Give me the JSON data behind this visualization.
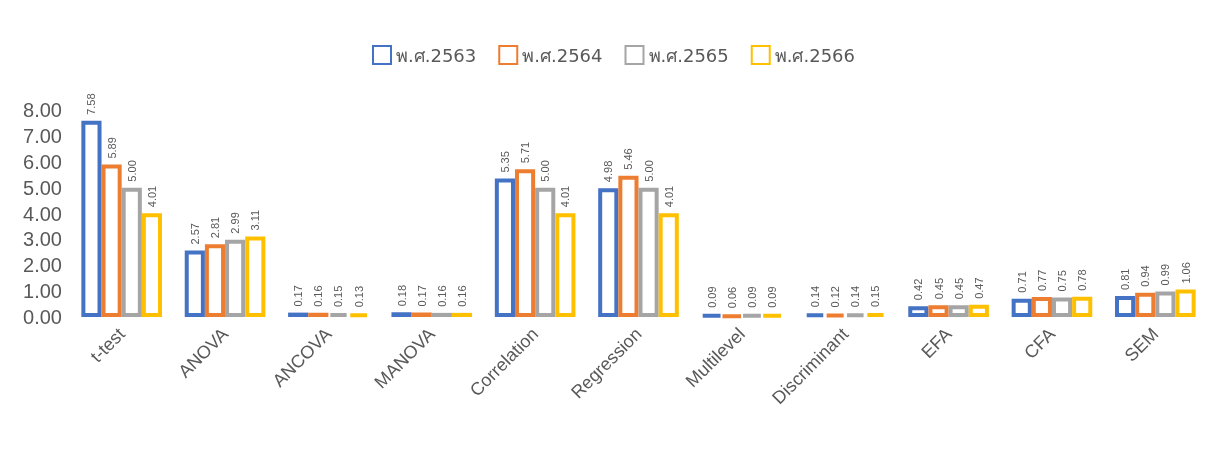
{
  "chart_data": {
    "type": "bar",
    "categories": [
      "t-test",
      "ANOVA",
      "ANCOVA",
      "MANOVA",
      "Correlation",
      "Regression",
      "Multilevel",
      "Discriminant",
      "EFA",
      "CFA",
      "SEM"
    ],
    "series": [
      {
        "name": "พ.ศ.2563",
        "color": "#4472c4",
        "values": [
          7.58,
          2.57,
          0.17,
          0.18,
          5.35,
          4.98,
          0.09,
          0.14,
          0.42,
          0.71,
          0.81
        ],
        "value_labels": [
          "7.58",
          "2.57",
          "0.17",
          "0.18",
          "5.35",
          "4.98",
          "0.09",
          "0.14",
          "0.42",
          "0.71",
          "0.81"
        ]
      },
      {
        "name": "พ.ศ.2564",
        "color": "#ed7d31",
        "values": [
          5.89,
          2.81,
          0.16,
          0.17,
          5.71,
          5.46,
          0.06,
          0.12,
          0.45,
          0.77,
          0.94
        ],
        "value_labels": [
          "5.89",
          "2.81",
          "0.16",
          "0.17",
          "5.71",
          "5.46",
          "0.06",
          "0.12",
          "0.45",
          "0.77",
          "0.94"
        ]
      },
      {
        "name": "พ.ศ.2565",
        "color": "#a5a5a5",
        "values": [
          5.0,
          2.99,
          0.15,
          0.16,
          5.0,
          5.0,
          0.09,
          0.14,
          0.45,
          0.75,
          0.99
        ],
        "value_labels": [
          "5.00",
          "2.99",
          "0.15",
          "0.16",
          "5.00",
          "5.00",
          "0.09",
          "0.14",
          "0.45",
          "0.75",
          "0.99"
        ]
      },
      {
        "name": "พ.ศ.2566",
        "color": "#ffc000",
        "values": [
          4.01,
          3.11,
          0.13,
          0.16,
          4.01,
          4.01,
          0.09,
          0.15,
          0.47,
          0.78,
          1.06
        ],
        "value_labels": [
          "4.01",
          "3.11",
          "0.13",
          "0.16",
          "4.01",
          "4.01",
          "0.09",
          "0.15",
          "0.47",
          "0.78",
          "1.06"
        ]
      }
    ],
    "ylim": [
      0,
      8
    ],
    "yticks": [
      {
        "value": 0,
        "label": "0.00"
      },
      {
        "value": 1,
        "label": "1.00"
      },
      {
        "value": 2,
        "label": "2.00"
      },
      {
        "value": 3,
        "label": "3.00"
      },
      {
        "value": 4,
        "label": "4.00"
      },
      {
        "value": 5,
        "label": "5.00"
      },
      {
        "value": 6,
        "label": "6.00"
      },
      {
        "value": 7,
        "label": "7.00"
      },
      {
        "value": 8,
        "label": "8.00"
      }
    ],
    "grid": false,
    "legend": "top"
  }
}
